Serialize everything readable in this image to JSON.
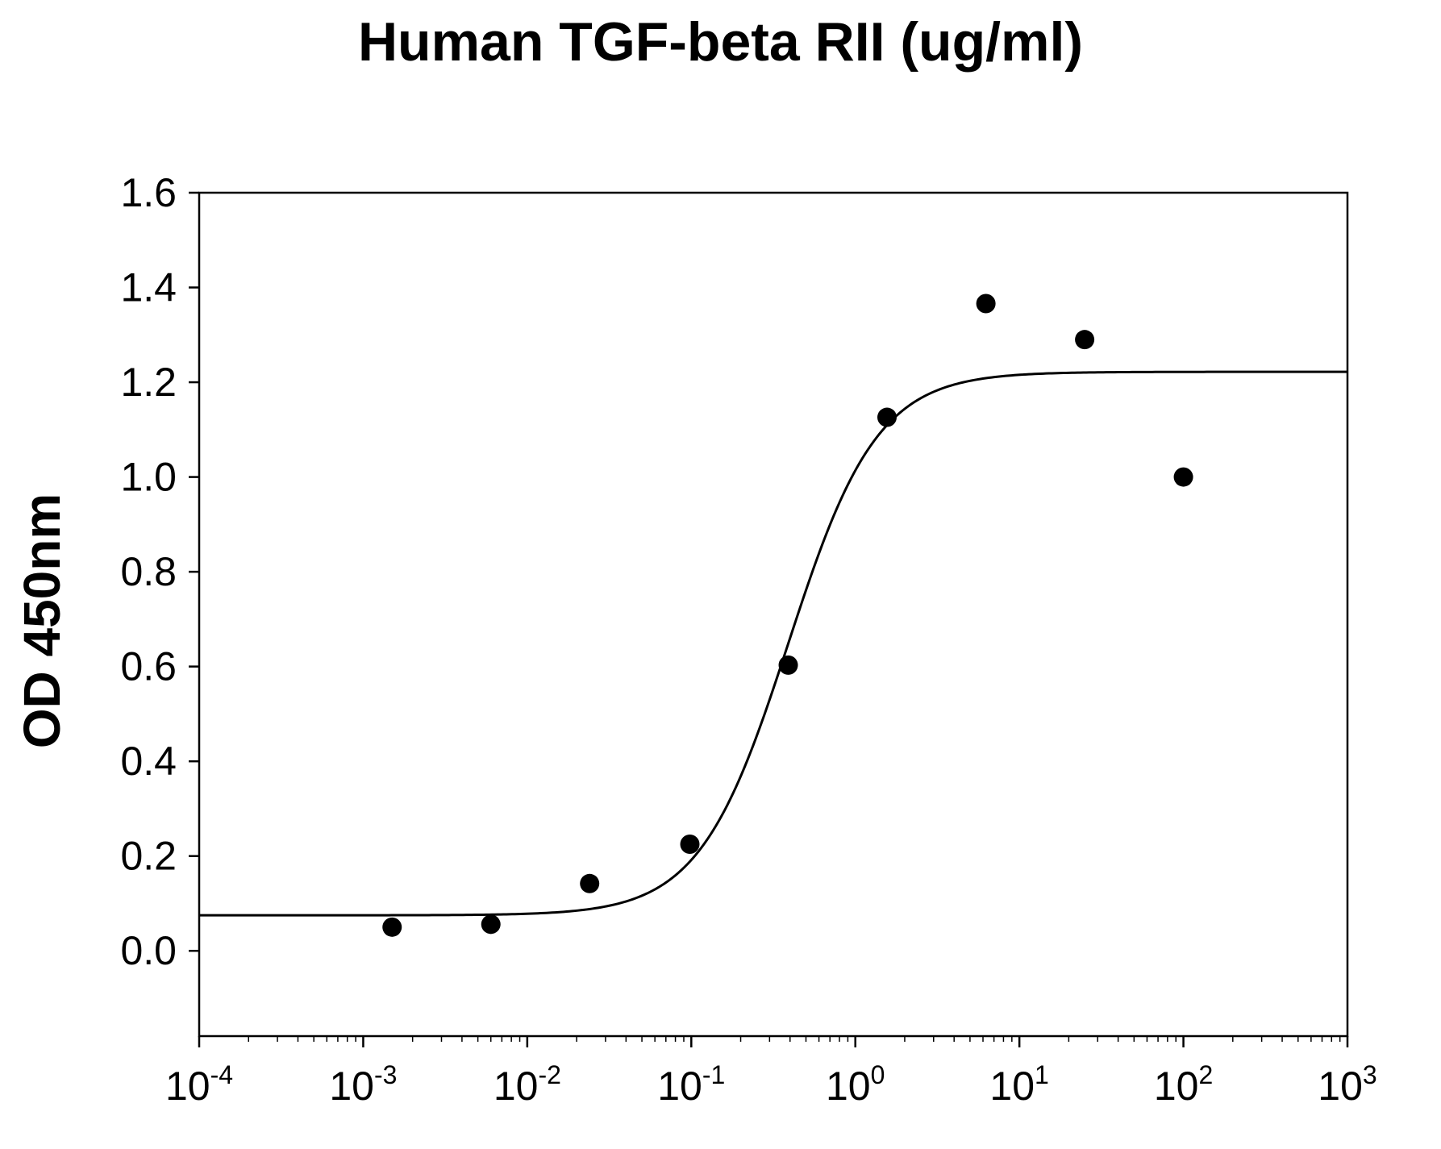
{
  "chart_data": {
    "type": "scatter",
    "title": "Human TGF-beta RII (ug/ml)",
    "xlabel": "",
    "ylabel": "OD 450nm",
    "xscale": "log10",
    "xlim": [
      0.0001,
      1000
    ],
    "ylim": [
      -0.18,
      1.6
    ],
    "x_ticks": [
      {
        "value": 0.0001,
        "base": "10",
        "exp": "-4"
      },
      {
        "value": 0.001,
        "base": "10",
        "exp": "-3"
      },
      {
        "value": 0.01,
        "base": "10",
        "exp": "-2"
      },
      {
        "value": 0.1,
        "base": "10",
        "exp": "-1"
      },
      {
        "value": 1,
        "base": "10",
        "exp": "0"
      },
      {
        "value": 10,
        "base": "10",
        "exp": "1"
      },
      {
        "value": 100,
        "base": "10",
        "exp": "2"
      },
      {
        "value": 1000,
        "base": "10",
        "exp": "3"
      }
    ],
    "y_ticks": [
      {
        "value": 0.0,
        "label": "0.0"
      },
      {
        "value": 0.2,
        "label": "0.2"
      },
      {
        "value": 0.4,
        "label": "0.4"
      },
      {
        "value": 0.6,
        "label": "0.6"
      },
      {
        "value": 0.8,
        "label": "0.8"
      },
      {
        "value": 1.0,
        "label": "1.0"
      },
      {
        "value": 1.2,
        "label": "1.2"
      },
      {
        "value": 1.4,
        "label": "1.4"
      },
      {
        "value": 1.6,
        "label": "1.6"
      }
    ],
    "grid": false,
    "legend": "none",
    "series": [
      {
        "points": [
          {
            "x": 0.0015,
            "y": 0.05
          },
          {
            "x": 0.006,
            "y": 0.056
          },
          {
            "x": 0.024,
            "y": 0.142
          },
          {
            "x": 0.098,
            "y": 0.225
          },
          {
            "x": 0.39,
            "y": 0.603
          },
          {
            "x": 1.56,
            "y": 1.126
          },
          {
            "x": 6.25,
            "y": 1.366
          },
          {
            "x": 25,
            "y": 1.29
          },
          {
            "x": 100,
            "y": 1.0
          }
        ],
        "fit": {
          "model": "4PL",
          "bottom": 0.075,
          "top": 1.222,
          "ec50": 0.39,
          "hill": 1.6
        },
        "color": "#000000"
      }
    ]
  }
}
